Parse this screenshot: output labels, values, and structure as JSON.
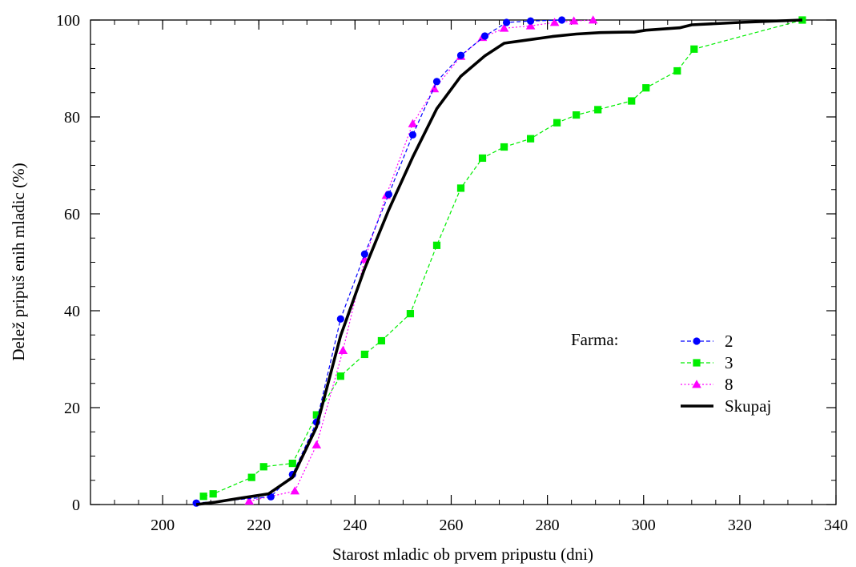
{
  "chart_data": {
    "type": "line",
    "title": "",
    "xlabel": "Starost mladic ob prvem pripustu (dni)",
    "ylabel": "Delež pripuš enih mladic (%)",
    "xlim": [
      185,
      340
    ],
    "ylim": [
      0,
      100
    ],
    "x_ticks": [
      200,
      220,
      240,
      260,
      280,
      300,
      320,
      340
    ],
    "y_ticks": [
      0,
      20,
      40,
      60,
      80,
      100
    ],
    "x_tick_labels": [
      "200",
      "220",
      "240",
      "260",
      "280",
      "300",
      "320",
      "340"
    ],
    "y_tick_labels": [
      "0",
      "20",
      "40",
      "60",
      "80",
      "100"
    ],
    "x_minor_step": 5,
    "y_minor_step": 5,
    "grid": false,
    "legend_title": "Farma:",
    "legend_position": "center-right",
    "series": [
      {
        "name": "2",
        "color": "#0000ff",
        "marker": "circle",
        "line_style": "dashed",
        "points": [
          [
            207,
            0.3
          ],
          [
            222.5,
            1.6
          ],
          [
            227,
            6.2
          ],
          [
            232,
            17
          ],
          [
            237,
            38.3
          ],
          [
            242,
            51.7
          ],
          [
            247,
            64
          ],
          [
            252,
            76.3
          ],
          [
            257,
            87.3
          ],
          [
            262,
            92.7
          ],
          [
            267,
            96.7
          ],
          [
            271.5,
            99.5
          ],
          [
            276.5,
            99.8
          ],
          [
            283,
            100
          ]
        ]
      },
      {
        "name": "3",
        "color": "#00ee00",
        "marker": "square",
        "line_style": "dashed",
        "points": [
          [
            208.5,
            1.7
          ],
          [
            210.5,
            2.2
          ],
          [
            218.5,
            5.6
          ],
          [
            221,
            7.8
          ],
          [
            227,
            8.5
          ],
          [
            232,
            18.5
          ],
          [
            237,
            26.5
          ],
          [
            242,
            31
          ],
          [
            245.5,
            33.8
          ],
          [
            251.5,
            39.4
          ],
          [
            257,
            53.5
          ],
          [
            262,
            65.3
          ],
          [
            266.5,
            71.5
          ],
          [
            271,
            73.8
          ],
          [
            276.5,
            75.5
          ],
          [
            282,
            78.8
          ],
          [
            286,
            80.4
          ],
          [
            290.5,
            81.5
          ],
          [
            297.5,
            83.3
          ],
          [
            300.5,
            86
          ],
          [
            307,
            89.5
          ],
          [
            310.5,
            94
          ],
          [
            333,
            100
          ]
        ]
      },
      {
        "name": "8",
        "color": "#ff00ff",
        "marker": "triangle",
        "line_style": "dotted",
        "points": [
          [
            218,
            0.7
          ],
          [
            227.5,
            2.8
          ],
          [
            232,
            12.3
          ],
          [
            237.5,
            31.8
          ],
          [
            242,
            50.6
          ],
          [
            246.5,
            63.8
          ],
          [
            252,
            78.6
          ],
          [
            256.5,
            85.8
          ],
          [
            262,
            92.5
          ],
          [
            266.5,
            96.4
          ],
          [
            271,
            98.3
          ],
          [
            276.5,
            98.8
          ],
          [
            281.5,
            99.5
          ],
          [
            285.5,
            99.8
          ],
          [
            289.5,
            100
          ]
        ]
      },
      {
        "name": "Skupaj",
        "color": "#000000",
        "marker": "none",
        "line_style": "solid",
        "points": [
          [
            207,
            0
          ],
          [
            211,
            0.5
          ],
          [
            216,
            1.3
          ],
          [
            222,
            2.2
          ],
          [
            227,
            5.6
          ],
          [
            232,
            16
          ],
          [
            237,
            34.8
          ],
          [
            242,
            48.7
          ],
          [
            247,
            60.8
          ],
          [
            252,
            71.7
          ],
          [
            257,
            81.7
          ],
          [
            262,
            88.4
          ],
          [
            267,
            92.6
          ],
          [
            271,
            95.2
          ],
          [
            276,
            95.9
          ],
          [
            281,
            96.6
          ],
          [
            286,
            97.1
          ],
          [
            291,
            97.4
          ],
          [
            296.5,
            97.5
          ],
          [
            298,
            97.5
          ],
          [
            300.5,
            97.9
          ],
          [
            307.5,
            98.4
          ],
          [
            310,
            99
          ],
          [
            320,
            99.5
          ],
          [
            333,
            100
          ]
        ]
      }
    ]
  }
}
